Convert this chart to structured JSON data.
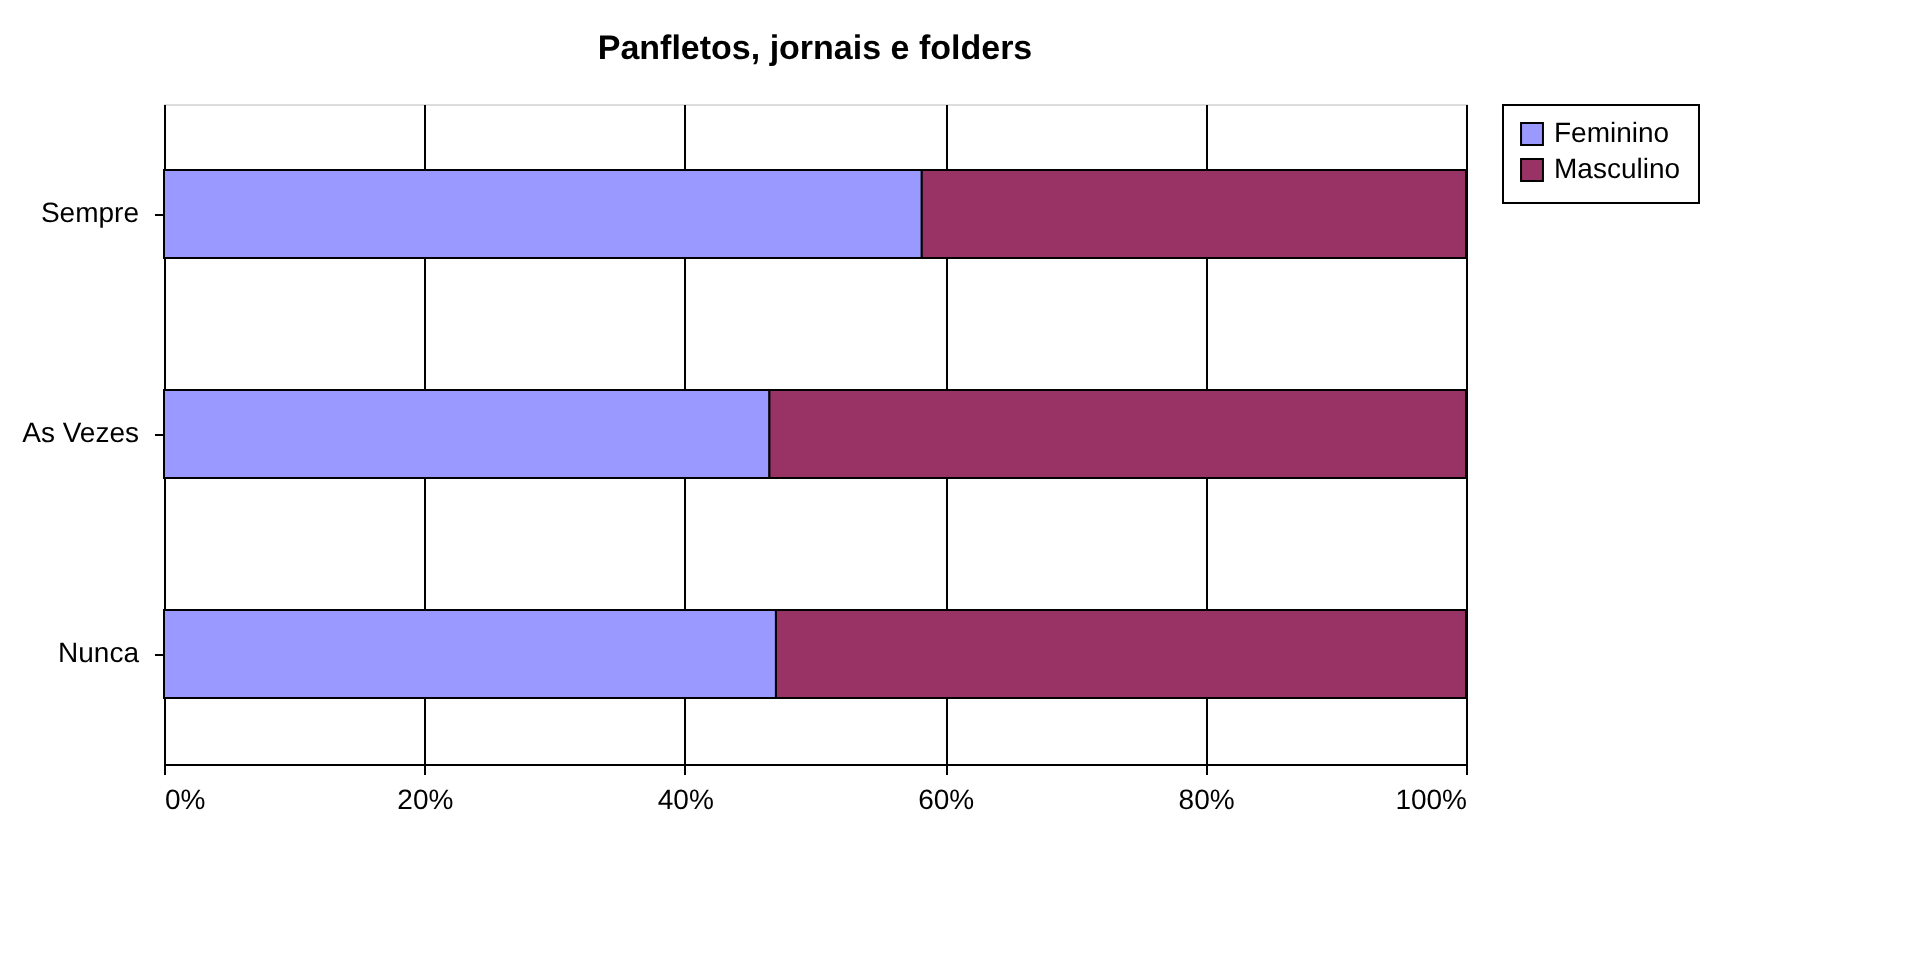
{
  "chart_data": {
    "type": "bar",
    "title": "Panfletos, jornais e folders",
    "orientation": "horizontal",
    "stacked": true,
    "categories": [
      "Sempre",
      "As Vezes",
      "Nunca"
    ],
    "series": [
      {
        "name": "Feminino",
        "color": "#9999ff",
        "values": [
          58.2,
          46.5,
          47.0
        ]
      },
      {
        "name": "Masculino",
        "color": "#993366",
        "values": [
          41.8,
          53.5,
          53.0
        ]
      }
    ],
    "xlim": [
      0,
      100
    ],
    "xticks": [
      {
        "value": 0,
        "label": "0%"
      },
      {
        "value": 20,
        "label": "20%"
      },
      {
        "value": 40,
        "label": "40%"
      },
      {
        "value": 60,
        "label": "60%"
      },
      {
        "value": 80,
        "label": "80%"
      },
      {
        "value": 100,
        "label": "100%"
      }
    ],
    "grid": "x",
    "legend": "right"
  }
}
